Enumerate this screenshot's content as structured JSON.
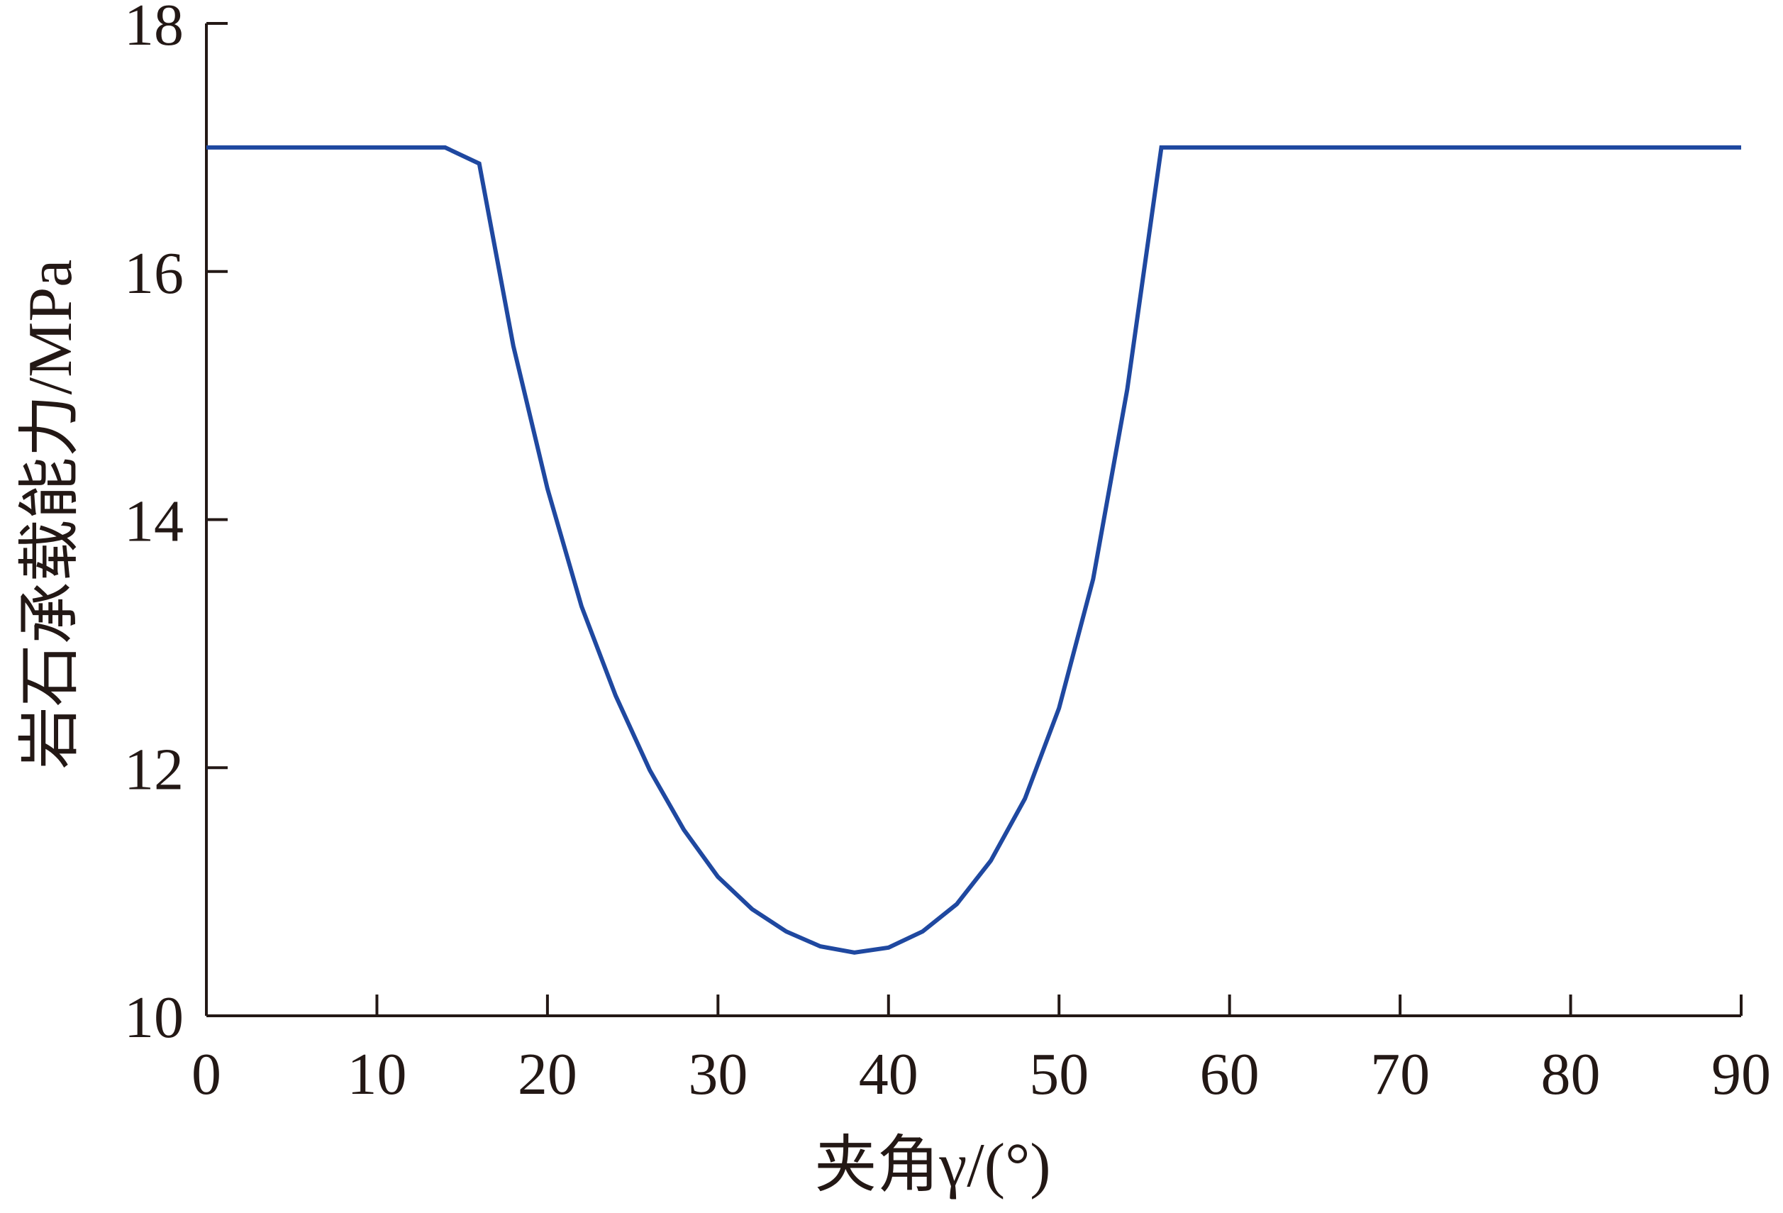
{
  "chart_data": {
    "type": "line",
    "xlabel": "夹角γ/(°)",
    "ylabel": "岩石承载能力/MPa",
    "xlim": [
      0,
      90
    ],
    "ylim": [
      10,
      18
    ],
    "x_ticks": [
      "0",
      "10",
      "20",
      "30",
      "40",
      "50",
      "60",
      "70",
      "80",
      "90"
    ],
    "y_ticks": [
      "10",
      "12",
      "14",
      "16",
      "18"
    ],
    "grid": false,
    "colors": {
      "line": "#1f48a0",
      "axis": "#231815"
    },
    "series": [
      {
        "x": [
          0,
          14,
          16,
          18,
          20,
          22,
          24,
          26,
          28,
          30,
          32,
          34,
          36,
          38,
          40,
          42,
          44,
          46,
          48,
          50,
          52,
          54,
          56,
          60,
          70,
          80,
          90
        ],
        "y": [
          17.0,
          17.0,
          16.87,
          15.4,
          14.25,
          13.3,
          12.58,
          11.98,
          11.5,
          11.12,
          10.86,
          10.68,
          10.56,
          10.51,
          10.55,
          10.68,
          10.9,
          11.25,
          11.75,
          12.48,
          13.52,
          15.05,
          17.0,
          17.0,
          17.0,
          17.0,
          17.0
        ]
      }
    ]
  }
}
